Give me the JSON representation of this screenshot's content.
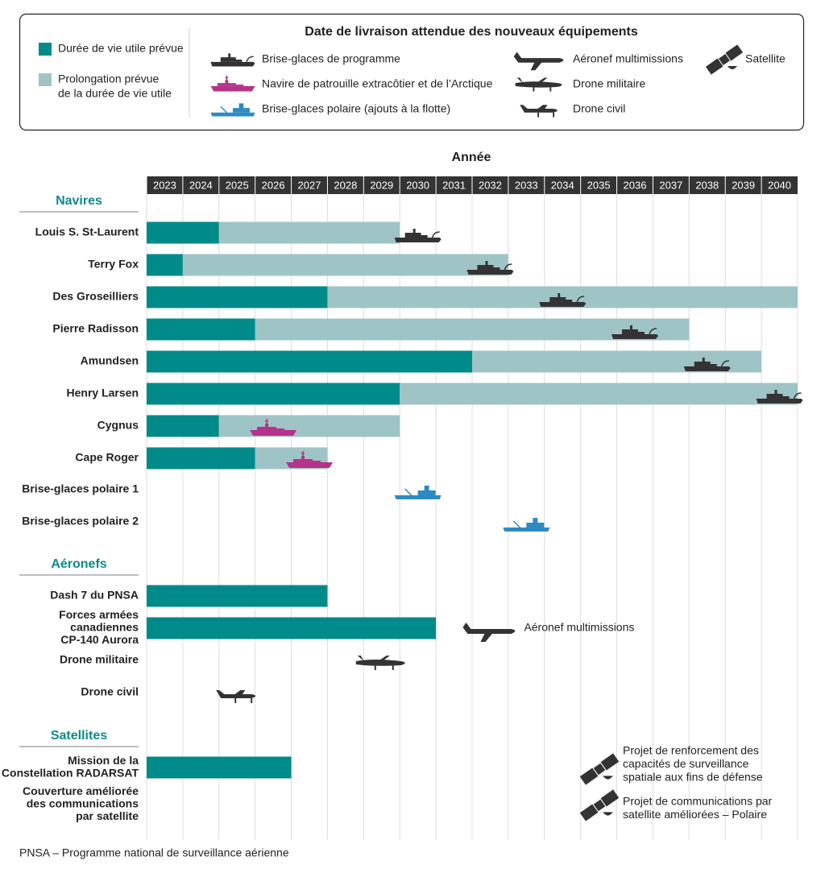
{
  "chart_data": {
    "type": "gantt",
    "x_title": "Année",
    "xlim": [
      2023,
      2041
    ],
    "xticks": [
      2023,
      2024,
      2025,
      2026,
      2027,
      2028,
      2029,
      2030,
      2031,
      2032,
      2033,
      2034,
      2035,
      2036,
      2037,
      2038,
      2039,
      2040
    ],
    "grid": true,
    "legend": {
      "title": "Date de livraison attendue des nouveaux équipements",
      "phases": [
        {
          "name_lines": [
            "Durée de vie utile prévue"
          ],
          "color": "#008a89"
        },
        {
          "name_lines": [
            "Prolongation prévue",
            "de la durée de vie utile"
          ],
          "color": "#9fc4c6"
        }
      ],
      "deliveries": [
        {
          "name": "Brise-glaces de programme",
          "icon": "icebreaker",
          "color": "#333333"
        },
        {
          "name": "Navire de patrouille extracôtier et de l’Arctique",
          "icon": "patrol",
          "color": "#b5338a"
        },
        {
          "name": "Brise-glaces polaire (ajouts à la flotte)",
          "icon": "polar",
          "color": "#2e8bc0"
        },
        {
          "name": "Aéronef multimissions",
          "icon": "aircraft",
          "color": "#333333"
        },
        {
          "name": "Drone militaire",
          "icon": "military_drone",
          "color": "#333333"
        },
        {
          "name": "Drone civil",
          "icon": "civil_drone",
          "color": "#333333"
        },
        {
          "name": "Satellite",
          "icon": "satellite",
          "color": "#333333"
        }
      ]
    },
    "sections": [
      {
        "name": "Navires",
        "rows": [
          {
            "label_lines": [
              "Louis S. St-Laurent"
            ],
            "start": 2023,
            "useful_life_end": 2025,
            "extension_end": 2030,
            "delivery": 2030.5,
            "icon": "icebreaker"
          },
          {
            "label_lines": [
              "Terry Fox"
            ],
            "start": 2023,
            "useful_life_end": 2024,
            "extension_end": 2033,
            "delivery": 2032.5,
            "icon": "icebreaker"
          },
          {
            "label_lines": [
              "Des Groseilliers"
            ],
            "start": 2023,
            "useful_life_end": 2028,
            "extension_end": 2041,
            "delivery": 2034.5,
            "icon": "icebreaker"
          },
          {
            "label_lines": [
              "Pierre Radisson"
            ],
            "start": 2023,
            "useful_life_end": 2026,
            "extension_end": 2038,
            "delivery": 2036.5,
            "icon": "icebreaker"
          },
          {
            "label_lines": [
              "Amundsen"
            ],
            "start": 2023,
            "useful_life_end": 2032,
            "extension_end": 2040,
            "delivery": 2038.5,
            "icon": "icebreaker"
          },
          {
            "label_lines": [
              "Henry Larsen"
            ],
            "start": 2023,
            "useful_life_end": 2030,
            "extension_end": 2041,
            "delivery": 2040.5,
            "icon": "icebreaker"
          },
          {
            "label_lines": [
              "Cygnus"
            ],
            "start": 2023,
            "useful_life_end": 2025,
            "extension_end": 2030,
            "delivery": 2026.5,
            "icon": "patrol"
          },
          {
            "label_lines": [
              "Cape Roger"
            ],
            "start": 2023,
            "useful_life_end": 2026,
            "extension_end": 2028,
            "delivery": 2027.5,
            "icon": "patrol"
          },
          {
            "label_lines": [
              "Brise-glaces polaire 1"
            ],
            "delivery": 2030.5,
            "icon": "polar"
          },
          {
            "label_lines": [
              "Brise-glaces polaire 2"
            ],
            "delivery": 2033.5,
            "icon": "polar"
          }
        ]
      },
      {
        "name": "Aéronefs",
        "rows": [
          {
            "label_lines": [
              "Dash 7 du PNSA"
            ],
            "start": 2023,
            "useful_life_end": 2028
          },
          {
            "label_lines": [
              "Forces armées",
              "canadiennes",
              "CP-140 Aurora"
            ],
            "start": 2023,
            "useful_life_end": 2031,
            "delivery": 2032.5,
            "icon": "aircraft",
            "annotation": "Aéronef multimissions"
          },
          {
            "label_lines": [
              "Drone militaire"
            ],
            "delivery": 2029.5,
            "icon": "military_drone"
          },
          {
            "label_lines": [
              "Drone civil"
            ],
            "delivery": 2025.5,
            "icon": "civil_drone"
          }
        ]
      },
      {
        "name": "Satellites",
        "rows": [
          {
            "label_lines": [
              "Mission de la",
              "Constellation RADARSAT"
            ],
            "start": 2023,
            "useful_life_end": 2027
          },
          {
            "label_lines": [
              "Couverture améliorée",
              "des communications",
              "par satellite"
            ]
          }
        ]
      }
    ],
    "satellite_notes": [
      {
        "lines": [
          "Projet de renforcement des",
          "capacités de surveillance",
          "spatiale aux fins de défense"
        ],
        "icon": "satellite"
      },
      {
        "lines": [
          "Projet de communications par",
          "satellite améliorées – Polaire"
        ],
        "icon": "satellite"
      }
    ],
    "footnote": "PNSA – Programme national de surveillance aérienne"
  }
}
